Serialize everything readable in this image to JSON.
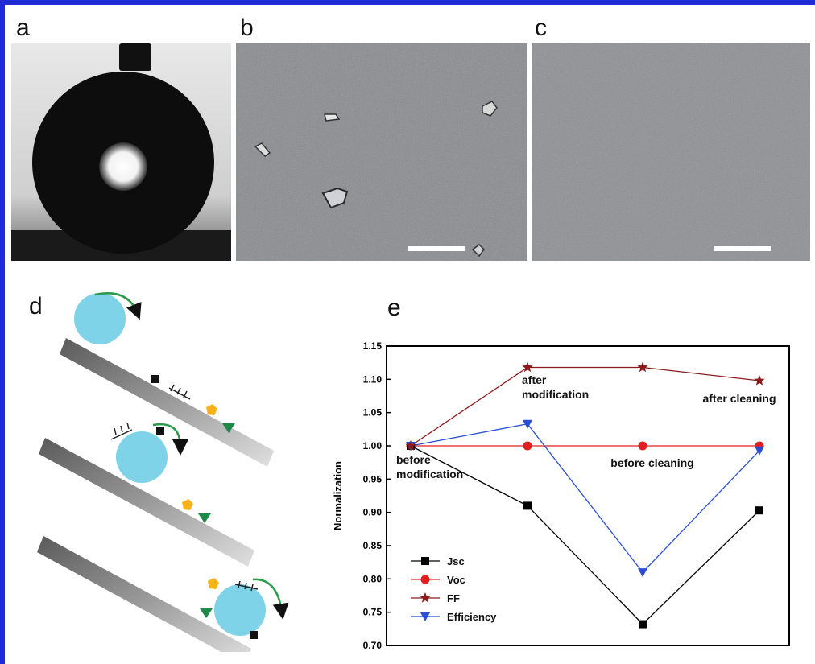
{
  "panel_labels": {
    "a": "a",
    "b": "b",
    "c": "c",
    "d": "d",
    "e": "e"
  },
  "chart_data": {
    "type": "line",
    "ylabel": "Normalization",
    "xlabel": "",
    "ylim": [
      0.7,
      1.15
    ],
    "yticks": [
      "0.70",
      "0.75",
      "0.80",
      "0.85",
      "0.90",
      "0.95",
      "1.00",
      "1.05",
      "1.10",
      "1.15"
    ],
    "x": [
      0,
      1,
      2,
      3
    ],
    "annotations": [
      "before modification",
      "after modification",
      "before cleaning",
      "after cleaning"
    ],
    "series": [
      {
        "name": "Jsc",
        "color": "#000000",
        "marker": "square",
        "values": [
          1.0,
          0.91,
          0.732,
          0.903
        ]
      },
      {
        "name": "Voc",
        "color": "#e02020",
        "marker": "circle",
        "values": [
          1.0,
          1.0,
          1.0,
          1.0
        ]
      },
      {
        "name": "FF",
        "color": "#8b1a1a",
        "marker": "star",
        "values": [
          1.0,
          1.118,
          1.118,
          1.098
        ]
      },
      {
        "name": "Efficiency",
        "color": "#2a4fd6",
        "marker": "triangle-down",
        "values": [
          1.0,
          1.033,
          0.81,
          0.993
        ]
      }
    ],
    "legend_position": "bottom-left",
    "grid": false
  }
}
